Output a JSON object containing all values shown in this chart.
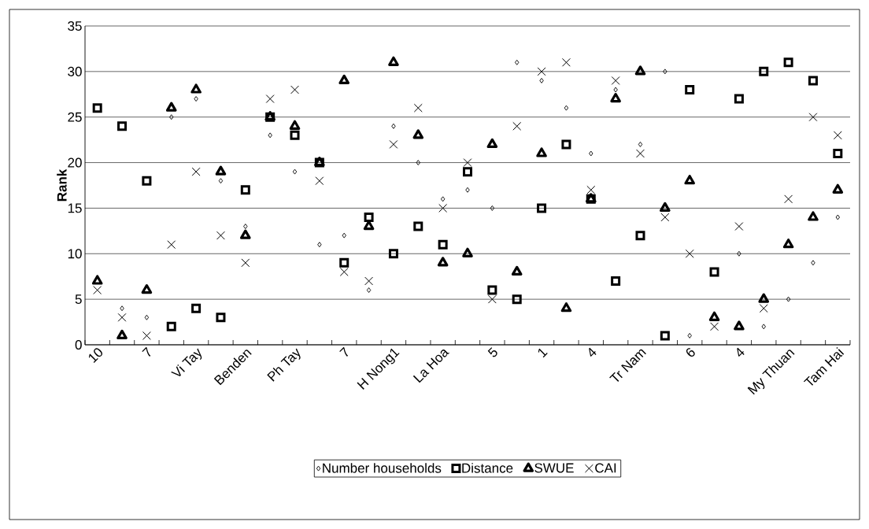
{
  "chart_data": {
    "type": "scatter",
    "ylabel": "Rank",
    "categories": [
      "10",
      null,
      "7",
      null,
      "Vi Tay",
      null,
      "Benden",
      null,
      "Ph Tay",
      null,
      "7",
      null,
      "H Nong1",
      null,
      "La Hoa",
      null,
      "5",
      null,
      "1",
      null,
      "4",
      null,
      "Tr Nam",
      null,
      "6",
      null,
      "4",
      null,
      "My Thuan",
      null,
      "Tam Hai"
    ],
    "series": [
      {
        "name": "Number households",
        "color": "#000000",
        "marker": "diamond",
        "values": [
          null,
          4,
          3,
          25,
          27,
          18,
          13,
          23,
          19,
          11,
          12,
          6,
          24,
          20,
          16,
          17,
          15,
          31,
          29,
          26,
          21,
          28,
          22,
          30,
          1,
          null,
          10,
          2,
          5,
          9,
          14
        ]
      },
      {
        "name": "Distance",
        "color": "#000000",
        "marker": "square",
        "values": [
          26,
          24,
          18,
          2,
          4,
          3,
          17,
          25,
          23,
          20,
          9,
          14,
          10,
          13,
          11,
          19,
          6,
          5,
          15,
          22,
          16,
          7,
          12,
          1,
          28,
          8,
          27,
          30,
          31,
          29,
          21
        ]
      },
      {
        "name": "SWUE",
        "color": "#000000",
        "marker": "triangle",
        "values": [
          7,
          1,
          6,
          26,
          28,
          19,
          12,
          25,
          24,
          20,
          29,
          13,
          31,
          23,
          9,
          10,
          22,
          8,
          21,
          4,
          16,
          27,
          30,
          15,
          18,
          3,
          2,
          5,
          11,
          14,
          17
        ]
      },
      {
        "name": "CAI",
        "color": "#000000",
        "marker": "cross",
        "values": [
          6,
          3,
          1,
          11,
          19,
          12,
          9,
          27,
          28,
          18,
          8,
          7,
          22,
          26,
          15,
          20,
          5,
          24,
          30,
          31,
          17,
          29,
          21,
          14,
          10,
          2,
          13,
          4,
          16,
          25,
          23
        ]
      }
    ],
    "ylim": [
      0,
      35
    ],
    "yticks": [
      0,
      5,
      10,
      15,
      20,
      25,
      30,
      35
    ],
    "grid": "y",
    "legend": "bottom"
  }
}
